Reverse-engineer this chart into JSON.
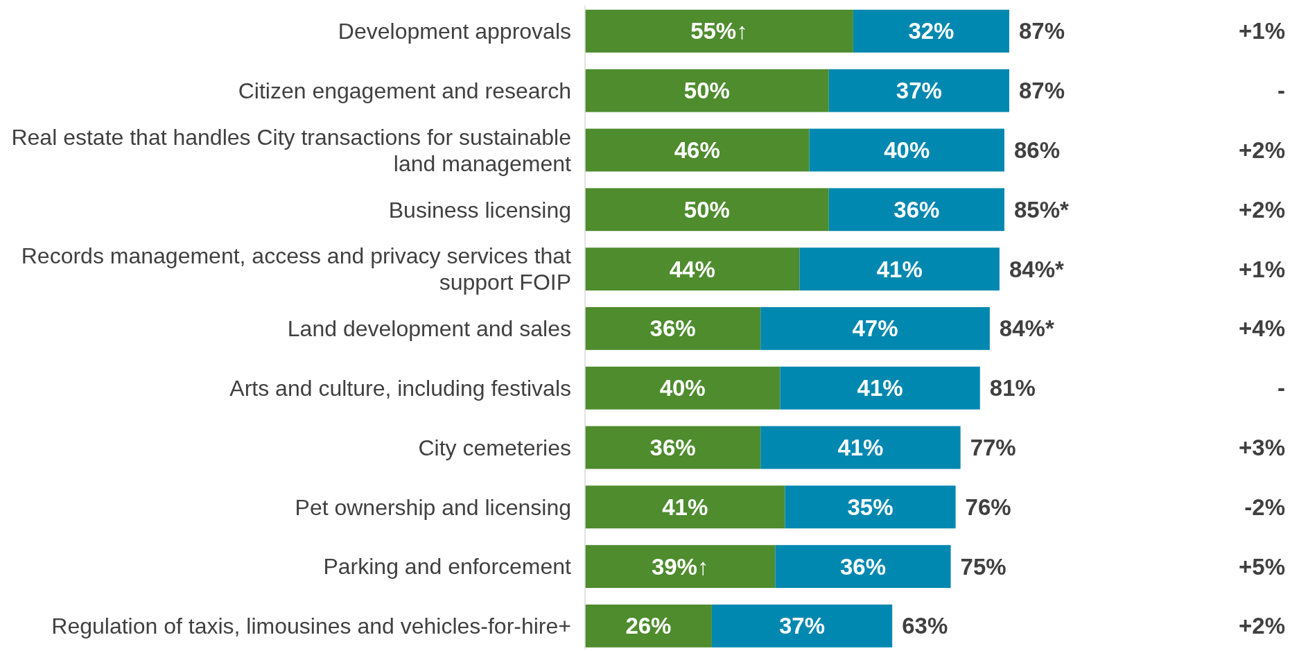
{
  "chart_data": {
    "type": "bar",
    "orientation": "horizontal",
    "stacked": true,
    "data_labels": true,
    "categories": [
      "Development approvals",
      "Citizen engagement and research",
      "Real estate that handles City transactions for sustainable land management",
      "Business licensing",
      "Records management, access and privacy services that support FOIP",
      "Land development and sales",
      "Arts and culture, including festivals",
      "City cemeteries",
      "Pet ownership and licensing",
      "Parking and enforcement",
      "Regulation of taxis, limousines and vehicles-for-hire+"
    ],
    "series": [
      {
        "color": "#4e8c2e",
        "values": [
          55,
          50,
          46,
          50,
          44,
          36,
          40,
          36,
          41,
          39,
          26
        ],
        "value_labels": [
          "55%↑",
          "50%",
          "46%",
          "50%",
          "44%",
          "36%",
          "40%",
          "36%",
          "41%",
          "39%↑",
          "26%"
        ]
      },
      {
        "color": "#0088b0",
        "values": [
          32,
          37,
          40,
          36,
          41,
          47,
          41,
          41,
          35,
          36,
          37
        ],
        "value_labels": [
          "32%",
          "37%",
          "40%",
          "36%",
          "41%",
          "47%",
          "41%",
          "41%",
          "35%",
          "36%",
          "37%"
        ]
      }
    ],
    "totals": [
      "87%",
      "87%",
      "86%",
      "85%*",
      "84%*",
      "84%*",
      "81%",
      "77%",
      "76%",
      "75%",
      "63%"
    ],
    "annotations": [
      "+1%",
      "-",
      "+2%",
      "+2%",
      "+1%",
      "+4%",
      "-",
      "+3%",
      "-2%",
      "+5%",
      "+2%"
    ]
  }
}
